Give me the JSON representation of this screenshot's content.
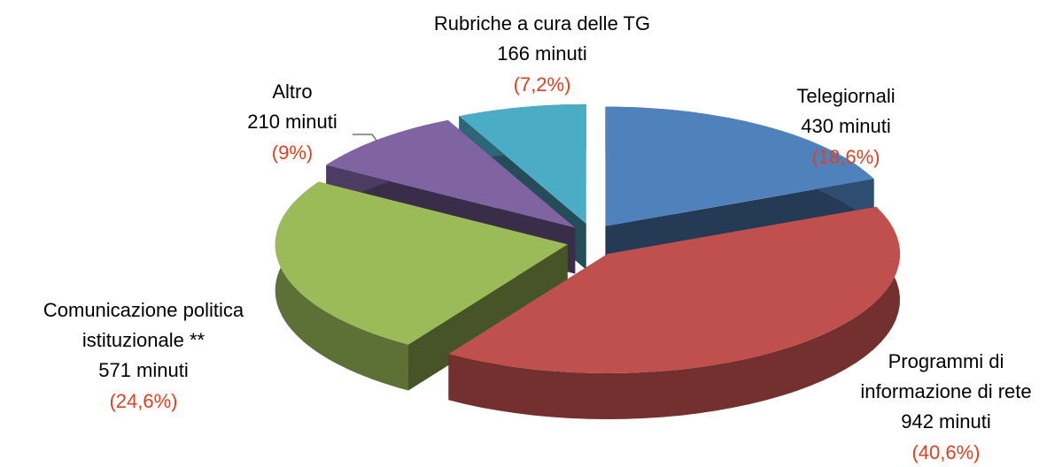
{
  "chart_data": {
    "type": "pie",
    "categories": [
      "Telegiornali",
      "Programmi di\ninformazione di rete",
      "Comunicazione politica\nistituzionale **",
      "Altro",
      "Rubriche a cura delle TG"
    ],
    "values": [
      430,
      942,
      571,
      210,
      166
    ],
    "value_labels": [
      "430 minuti",
      "942 minuti",
      "571 minuti",
      "210 minuti",
      "166 minuti"
    ],
    "percentages": [
      18.6,
      40.6,
      24.6,
      9,
      7.2
    ],
    "percentage_labels": [
      "(18,6%)",
      "(40,6%)",
      "(24,6%)",
      "(9%)",
      "(7,2%)"
    ],
    "colors": [
      "#4f81bd",
      "#c0504d",
      "#9bbb59",
      "#8064a2",
      "#4bacc6"
    ]
  }
}
